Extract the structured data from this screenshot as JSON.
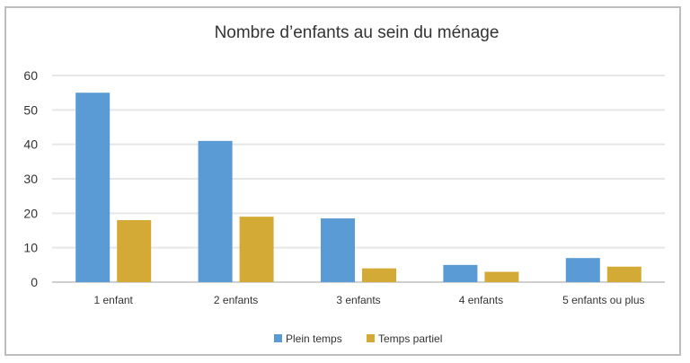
{
  "chart_data": {
    "type": "bar",
    "title": "Nombre d’enfants au sein du ménage",
    "xlabel": "",
    "ylabel": "",
    "categories": [
      "1 enfant",
      "2 enfants",
      "3 enfants",
      "4 enfants",
      "5 enfants ou plus"
    ],
    "series": [
      {
        "name": "Plein temps",
        "color": "#5b9bd5",
        "values": [
          55,
          41,
          18.5,
          5,
          7
        ]
      },
      {
        "name": "Temps partiel",
        "color": "#d4aa36",
        "values": [
          18,
          19,
          4,
          3,
          4.5
        ]
      }
    ],
    "ylim": [
      0,
      60
    ],
    "yticks": [
      "0",
      "10",
      "20",
      "30",
      "40",
      "50",
      "60"
    ],
    "grid": true,
    "legend": "bottom"
  }
}
